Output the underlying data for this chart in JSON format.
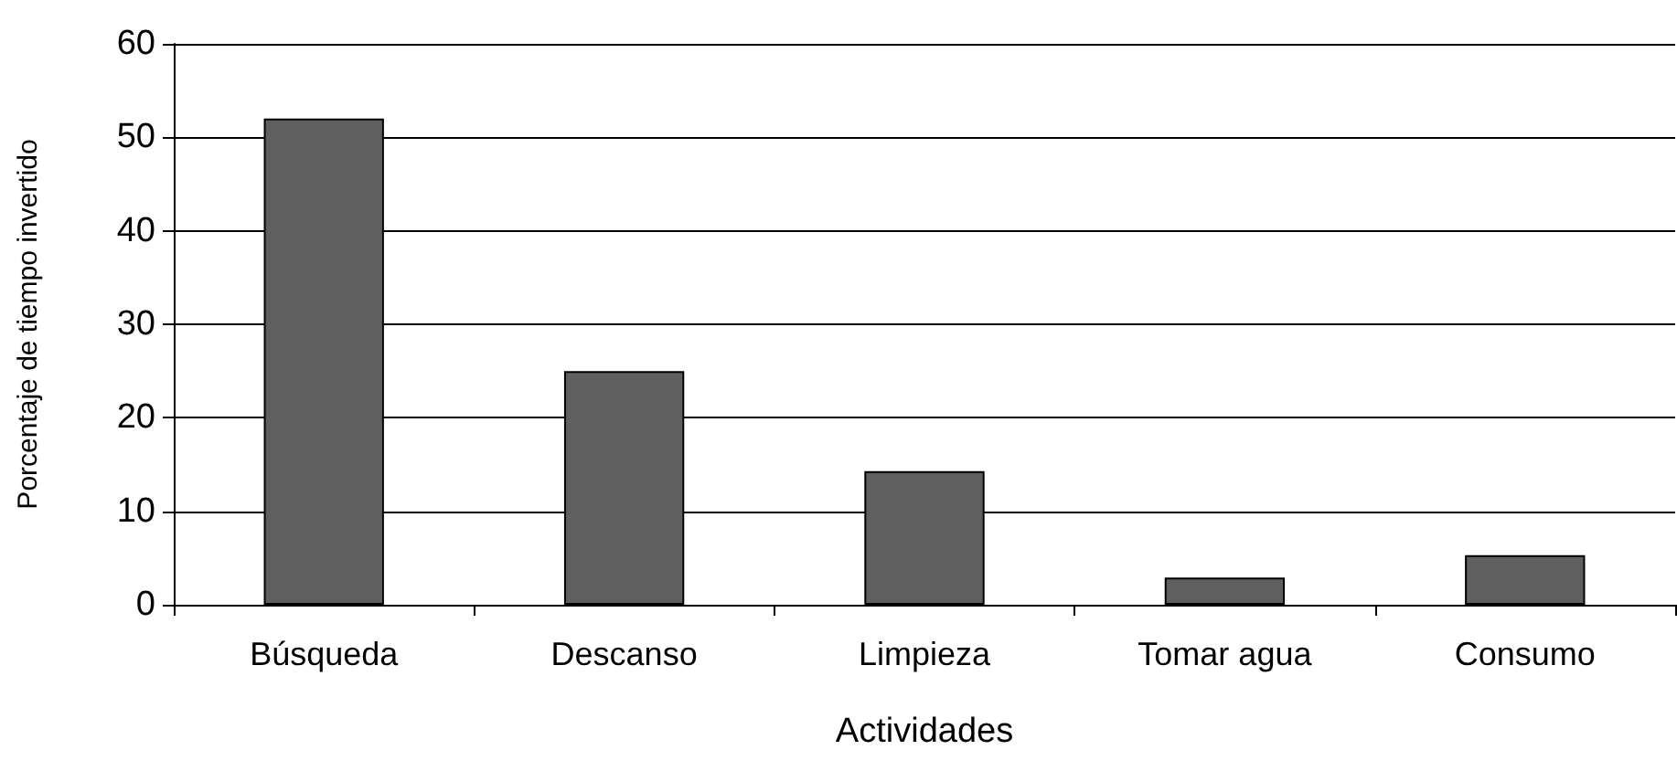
{
  "chart_data": {
    "type": "bar",
    "xlabel": "Actividades",
    "ylabel": "Porcentaje de tiempo invertido",
    "categories": [
      "Búsqueda",
      "Descanso",
      "Limpieza",
      "Tomar agua",
      "Consumo"
    ],
    "values": [
      52,
      25,
      14.3,
      2.9,
      5.3
    ],
    "color": "#5f5f5f",
    "ylim": [
      0,
      60
    ],
    "yticks": [
      0,
      10,
      20,
      30,
      40,
      50,
      60
    ],
    "grid": "y"
  }
}
